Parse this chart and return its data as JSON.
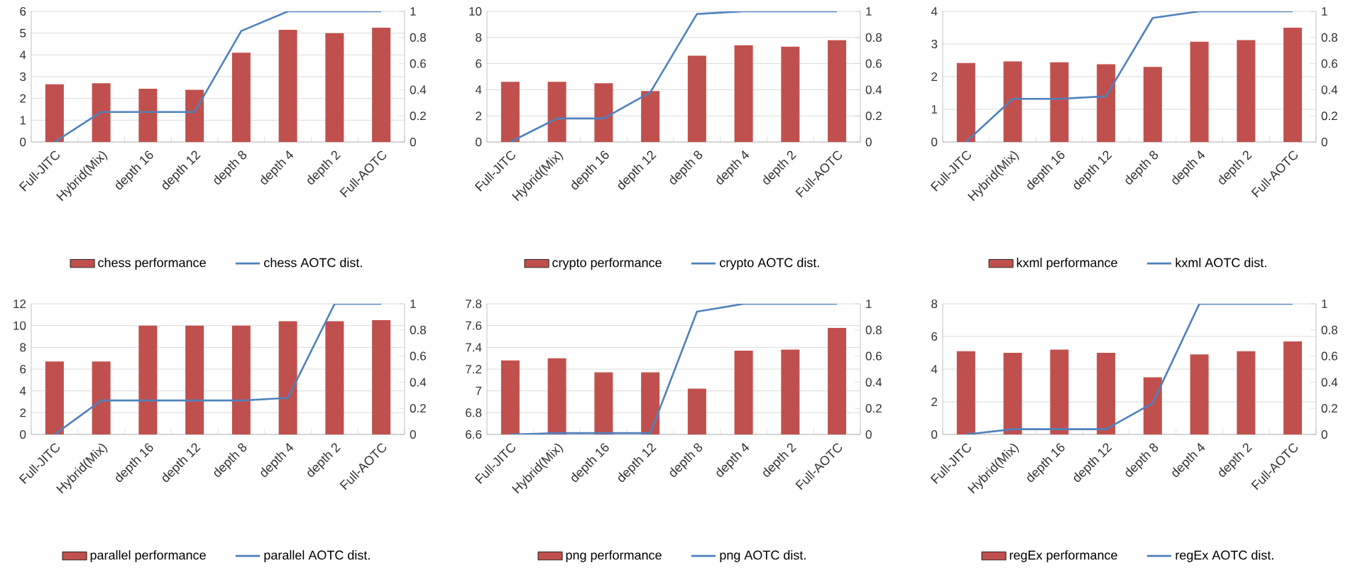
{
  "chart_data": [
    {
      "type": "bar",
      "categories": [
        "Full-JITC",
        "Hybrid(Mix)",
        "depth 16",
        "depth 12",
        "depth 8",
        "depth 4",
        "depth 2",
        "Full-AOTC"
      ],
      "series": [
        {
          "name": "chess performance",
          "color": "#c0504d",
          "values": [
            2.65,
            2.7,
            2.45,
            2.4,
            4.1,
            5.15,
            5.0,
            5.25
          ]
        },
        {
          "name": "chess AOTC dist.",
          "type": "line",
          "axis": "y2",
          "color": "#4f81bd",
          "values": [
            0,
            0.23,
            0.23,
            0.23,
            0.85,
            1,
            1,
            1
          ]
        }
      ],
      "ylim": [
        0,
        6
      ],
      "yticks": [
        0,
        1,
        2,
        3,
        4,
        5,
        6
      ],
      "y2lim": [
        0,
        1
      ],
      "y2ticks": [
        0,
        0.2,
        0.4,
        0.6,
        0.8,
        1
      ],
      "grid": "y",
      "legend": "bottom"
    },
    {
      "type": "bar",
      "categories": [
        "Full-JITC",
        "Hybrid(Mix)",
        "depth 16",
        "depth 12",
        "depth 8",
        "depth 4",
        "depth 2",
        "Full-AOTC"
      ],
      "series": [
        {
          "name": "crypto performance",
          "color": "#c0504d",
          "values": [
            4.6,
            4.6,
            4.5,
            3.9,
            6.6,
            7.4,
            7.3,
            7.8
          ]
        },
        {
          "name": "crypto AOTC dist.",
          "type": "line",
          "axis": "y2",
          "color": "#4f81bd",
          "values": [
            0,
            0.18,
            0.18,
            0.38,
            0.98,
            1,
            1,
            1
          ]
        }
      ],
      "ylim": [
        0,
        10
      ],
      "yticks": [
        0,
        2,
        4,
        6,
        8,
        10
      ],
      "y2lim": [
        0,
        1
      ],
      "y2ticks": [
        0,
        0.2,
        0.4,
        0.6,
        0.8,
        1
      ],
      "grid": "y",
      "legend": "bottom"
    },
    {
      "type": "bar",
      "categories": [
        "Full-JITC",
        "Hybrid(Mix)",
        "depth 16",
        "depth 12",
        "depth 8",
        "depth 4",
        "depth 2",
        "Full-AOTC"
      ],
      "series": [
        {
          "name": "kxml performance",
          "color": "#c0504d",
          "values": [
            2.42,
            2.47,
            2.44,
            2.38,
            2.3,
            3.07,
            3.12,
            3.5
          ]
        },
        {
          "name": "kxml AOTC dist.",
          "type": "line",
          "axis": "y2",
          "color": "#4f81bd",
          "values": [
            0,
            0.33,
            0.33,
            0.35,
            0.95,
            1,
            1,
            1
          ]
        }
      ],
      "ylim": [
        0,
        4
      ],
      "yticks": [
        0,
        1,
        2,
        3,
        4
      ],
      "y2lim": [
        0,
        1
      ],
      "y2ticks": [
        0,
        0.2,
        0.4,
        0.6,
        0.8,
        1
      ],
      "grid": "y",
      "legend": "bottom"
    },
    {
      "type": "bar",
      "categories": [
        "Full-JITC",
        "Hybrid(Mix)",
        "depth 16",
        "depth 12",
        "depth 8",
        "depth 4",
        "depth 2",
        "Full-AOTC"
      ],
      "series": [
        {
          "name": "parallel performance",
          "color": "#c0504d",
          "values": [
            6.7,
            6.7,
            10.0,
            10.0,
            10.0,
            10.4,
            10.4,
            10.5
          ]
        },
        {
          "name": "parallel AOTC dist.",
          "type": "line",
          "axis": "y2",
          "color": "#4f81bd",
          "values": [
            0,
            0.26,
            0.26,
            0.26,
            0.26,
            0.28,
            1,
            1
          ]
        }
      ],
      "ylim": [
        0,
        12
      ],
      "yticks": [
        0,
        2,
        4,
        6,
        8,
        10,
        12
      ],
      "y2lim": [
        0,
        1
      ],
      "y2ticks": [
        0,
        0.2,
        0.4,
        0.6,
        0.8,
        1
      ],
      "grid": "y",
      "legend": "bottom"
    },
    {
      "type": "bar",
      "categories": [
        "Full-JITC",
        "Hybrid(Mix)",
        "depth 16",
        "depth 12",
        "depth 8",
        "depth 4",
        "depth 2",
        "Full-AOTC"
      ],
      "series": [
        {
          "name": "png performance",
          "color": "#c0504d",
          "values": [
            7.28,
            7.3,
            7.17,
            7.17,
            7.02,
            7.37,
            7.38,
            7.58
          ]
        },
        {
          "name": "png AOTC dist.",
          "type": "line",
          "axis": "y2",
          "color": "#4f81bd",
          "values": [
            0,
            0.01,
            0.01,
            0.01,
            0.94,
            1,
            1,
            1
          ]
        }
      ],
      "ylim": [
        6.6,
        7.8
      ],
      "yticks": [
        6.6,
        6.8,
        7,
        7.2,
        7.4,
        7.6,
        7.8
      ],
      "y2lim": [
        0,
        1
      ],
      "y2ticks": [
        0,
        0.2,
        0.4,
        0.6,
        0.8,
        1
      ],
      "grid": "y",
      "legend": "bottom"
    },
    {
      "type": "bar",
      "categories": [
        "Full-JITC",
        "Hybrid(Mix)",
        "depth 16",
        "depth 12",
        "depth 8",
        "depth 4",
        "depth 2",
        "Full-AOTC"
      ],
      "series": [
        {
          "name": "regEx performance",
          "color": "#c0504d",
          "values": [
            5.1,
            5.0,
            5.2,
            5.0,
            3.5,
            4.9,
            5.1,
            5.7
          ]
        },
        {
          "name": "regEx AOTC dist.",
          "type": "line",
          "axis": "y2",
          "color": "#4f81bd",
          "values": [
            0,
            0.04,
            0.04,
            0.04,
            0.24,
            1,
            1,
            1
          ]
        }
      ],
      "ylim": [
        0,
        8
      ],
      "yticks": [
        0,
        2,
        4,
        6,
        8
      ],
      "y2lim": [
        0,
        1
      ],
      "y2ticks": [
        0,
        0.2,
        0.4,
        0.6,
        0.8,
        1
      ],
      "grid": "y",
      "legend": "bottom"
    }
  ]
}
